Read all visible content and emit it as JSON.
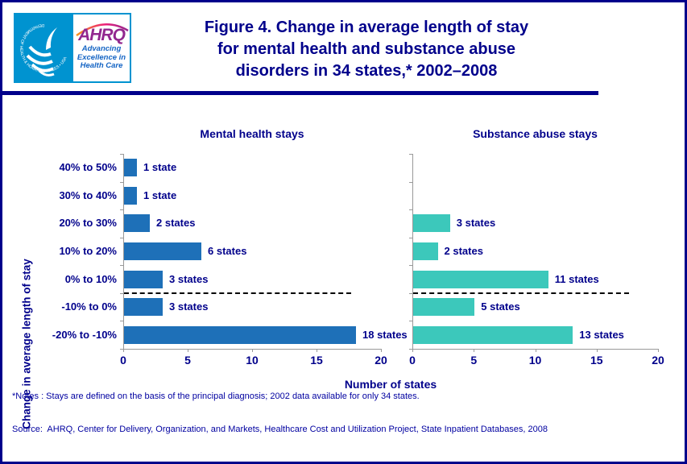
{
  "header": {
    "title_line1": "Figure 4. Change in average length of stay",
    "title_line2": "for mental health and substance abuse",
    "title_line3": "disorders in 34 states,* 2002–2008"
  },
  "logo": {
    "ahrq": "AHRQ",
    "tagline": "Advancing\nExcellence in\nHealth Care",
    "seal_text": "DEPARTMENT OF HEALTH & HUMAN SERVICES • USA"
  },
  "colors": {
    "navy_text": "#00008B",
    "mental_health_bar": "#1E70B8",
    "substance_abuse_bar": "#3CC8BB",
    "axis_gray": "#999999",
    "hhs_logo_blue": "#0093D0",
    "ahrq_purple": "#92278F"
  },
  "chart_data": {
    "type": "bar",
    "orientation": "horizontal",
    "title": "Figure 4. Change in average length of stay for mental health and substance abuse disorders in 34 states, 2002–2008",
    "categories": [
      "40% to 50%",
      "30% to 40%",
      "20% to 30%",
      "10% to 20%",
      "0% to 10%",
      "-10% to 0%",
      "-20% to -10%"
    ],
    "panels": [
      {
        "title": "Mental health stays",
        "color": "#1E70B8",
        "values": [
          1,
          1,
          2,
          6,
          3,
          3,
          18
        ],
        "labels": [
          "1 state",
          "1 state",
          "2 states",
          "6 states",
          "3 states",
          "3 states",
          "18 states"
        ]
      },
      {
        "title": "Substance abuse stays",
        "color": "#3CC8BB",
        "values": [
          0,
          0,
          3,
          2,
          11,
          5,
          13
        ],
        "labels": [
          "",
          "",
          "3 states",
          "2 states",
          "11 states",
          "5 states",
          "13 states"
        ]
      }
    ],
    "xlabel": "Number of states",
    "ylabel": "Change in average length of stay",
    "x_ticks": [
      0,
      5,
      10,
      15,
      20
    ],
    "xlim": [
      0,
      20
    ],
    "zero_reference_line_boundary_row": 5,
    "grid": false,
    "legend": "none"
  },
  "notes": {
    "line1": "*Notes : Stays are defined on the basis of the principal diagnosis; 2002 data available for only 34 states.",
    "line2": "Source:  AHRQ, Center for Delivery, Organization, and Markets, Healthcare Cost and Utilization Project, State Inpatient Databases, 2008"
  }
}
